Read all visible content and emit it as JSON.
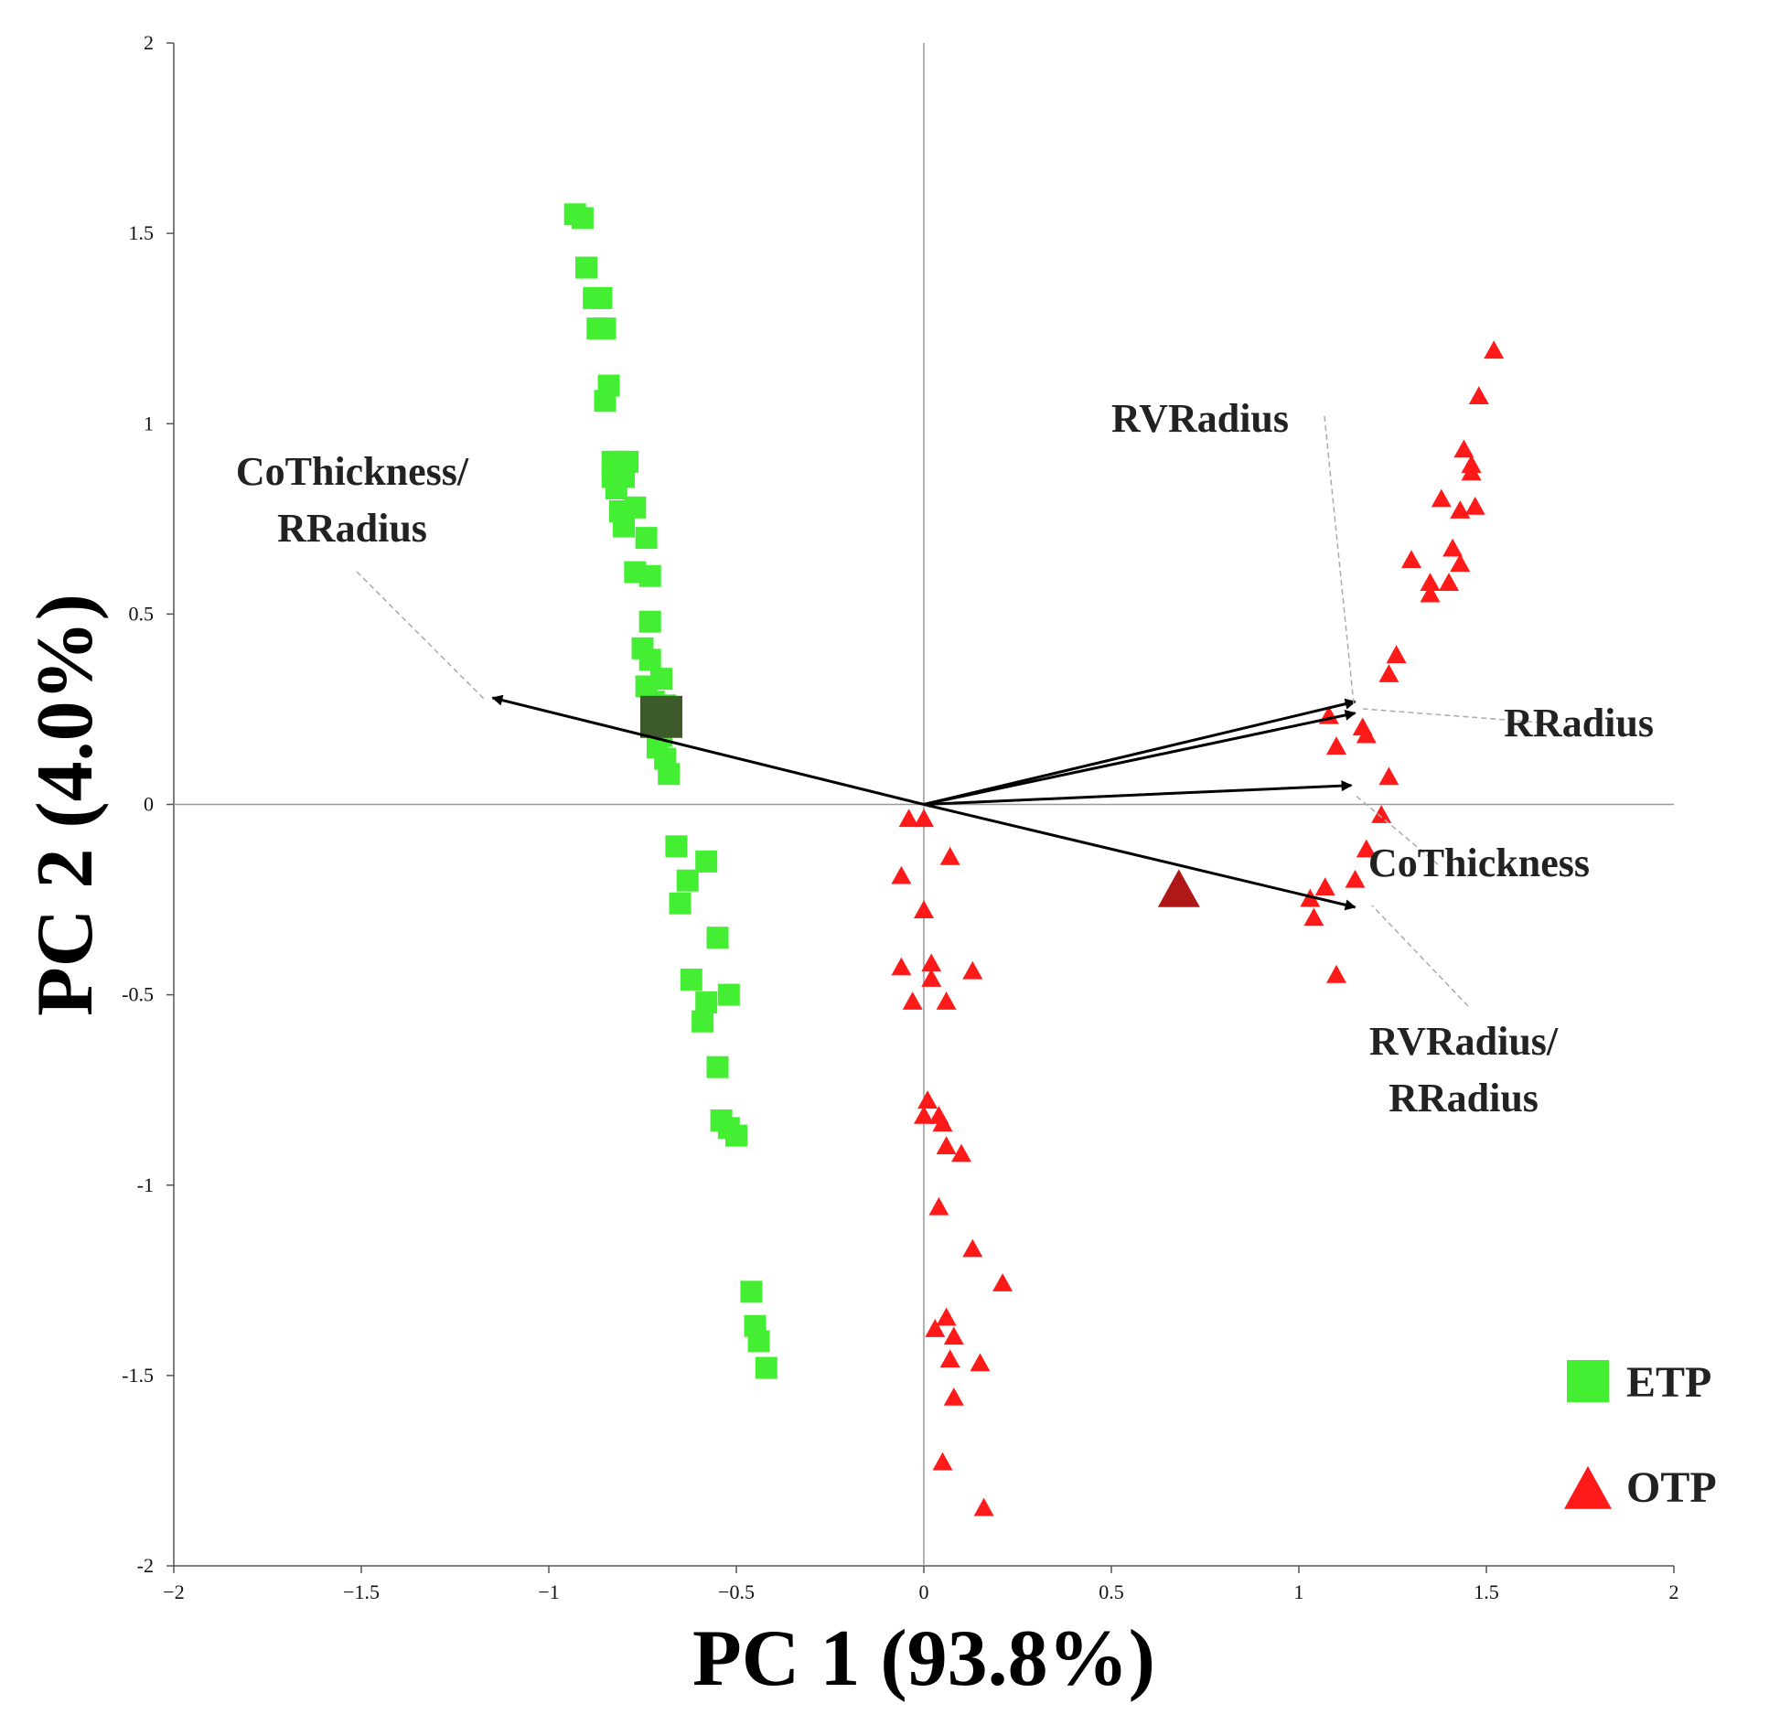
{
  "chart_data": {
    "type": "scatter",
    "title": "",
    "xlabel": "PC 1 (93.8%)",
    "ylabel": "PC 2 (4.0%)",
    "xlim": [
      -2,
      2
    ],
    "ylim": [
      -2,
      2
    ],
    "x_ticks": [
      {
        "value": -2,
        "label": "−2"
      },
      {
        "value": -1.5,
        "label": "−1.5"
      },
      {
        "value": -1,
        "label": "−1"
      },
      {
        "value": -0.5,
        "label": "−0.5"
      },
      {
        "value": 0,
        "label": "0"
      },
      {
        "value": 0.5,
        "label": "0.5"
      },
      {
        "value": 1,
        "label": "1"
      },
      {
        "value": 1.5,
        "label": "1.5"
      },
      {
        "value": 2,
        "label": "2"
      }
    ],
    "y_ticks": [
      {
        "value": 2,
        "label": "2"
      },
      {
        "value": 1.5,
        "label": "1.5"
      },
      {
        "value": 1,
        "label": "1"
      },
      {
        "value": 0.5,
        "label": "0.5"
      },
      {
        "value": 0,
        "label": "0"
      },
      {
        "value": -0.5,
        "label": "-0.5"
      },
      {
        "value": -1,
        "label": "-1"
      },
      {
        "value": -1.5,
        "label": "-1.5"
      },
      {
        "value": -2,
        "label": "-2"
      }
    ],
    "grid": false,
    "legend_position": "bottom-right",
    "series": [
      {
        "name": "ETP",
        "marker": "square",
        "color": "#44ee33",
        "centroid": {
          "x": -0.7,
          "y": 0.23,
          "color": "#3d5a2a"
        },
        "points": [
          {
            "x": -0.93,
            "y": 1.55
          },
          {
            "x": -0.91,
            "y": 1.54
          },
          {
            "x": -0.9,
            "y": 1.41
          },
          {
            "x": -0.88,
            "y": 1.33
          },
          {
            "x": -0.86,
            "y": 1.33
          },
          {
            "x": -0.87,
            "y": 1.25
          },
          {
            "x": -0.85,
            "y": 1.25
          },
          {
            "x": -0.84,
            "y": 1.1
          },
          {
            "x": -0.85,
            "y": 1.06
          },
          {
            "x": -0.83,
            "y": 0.9
          },
          {
            "x": -0.81,
            "y": 0.9
          },
          {
            "x": -0.79,
            "y": 0.9
          },
          {
            "x": -0.83,
            "y": 0.86
          },
          {
            "x": -0.82,
            "y": 0.83
          },
          {
            "x": -0.8,
            "y": 0.86
          },
          {
            "x": -0.81,
            "y": 0.77
          },
          {
            "x": -0.77,
            "y": 0.78
          },
          {
            "x": -0.8,
            "y": 0.73
          },
          {
            "x": -0.74,
            "y": 0.7
          },
          {
            "x": -0.77,
            "y": 0.61
          },
          {
            "x": -0.73,
            "y": 0.6
          },
          {
            "x": -0.73,
            "y": 0.48
          },
          {
            "x": -0.75,
            "y": 0.41
          },
          {
            "x": -0.73,
            "y": 0.38
          },
          {
            "x": -0.7,
            "y": 0.33
          },
          {
            "x": -0.74,
            "y": 0.31
          },
          {
            "x": -0.72,
            "y": 0.27
          },
          {
            "x": -0.69,
            "y": 0.26
          },
          {
            "x": -0.7,
            "y": 0.18
          },
          {
            "x": -0.71,
            "y": 0.15
          },
          {
            "x": -0.69,
            "y": 0.12
          },
          {
            "x": -0.68,
            "y": 0.08
          },
          {
            "x": -0.66,
            "y": -0.11
          },
          {
            "x": -0.58,
            "y": -0.15
          },
          {
            "x": -0.63,
            "y": -0.2
          },
          {
            "x": -0.65,
            "y": -0.26
          },
          {
            "x": -0.55,
            "y": -0.35
          },
          {
            "x": -0.62,
            "y": -0.46
          },
          {
            "x": -0.52,
            "y": -0.5
          },
          {
            "x": -0.58,
            "y": -0.52
          },
          {
            "x": -0.59,
            "y": -0.57
          },
          {
            "x": -0.55,
            "y": -0.69
          },
          {
            "x": -0.54,
            "y": -0.83
          },
          {
            "x": -0.52,
            "y": -0.85
          },
          {
            "x": -0.5,
            "y": -0.87
          },
          {
            "x": -0.46,
            "y": -1.28
          },
          {
            "x": -0.45,
            "y": -1.37
          },
          {
            "x": -0.44,
            "y": -1.41
          },
          {
            "x": -0.42,
            "y": -1.48
          }
        ]
      },
      {
        "name": "OTP",
        "marker": "triangle",
        "color": "#ff1a1a",
        "centroid": {
          "x": 0.68,
          "y": -0.23,
          "color": "#b01818"
        },
        "points": [
          {
            "x": -0.04,
            "y": -0.04
          },
          {
            "x": 0.0,
            "y": -0.04
          },
          {
            "x": 0.07,
            "y": -0.14
          },
          {
            "x": -0.06,
            "y": -0.19
          },
          {
            "x": 0.0,
            "y": -0.28
          },
          {
            "x": 0.02,
            "y": -0.42
          },
          {
            "x": -0.06,
            "y": -0.43
          },
          {
            "x": 0.02,
            "y": -0.46
          },
          {
            "x": 0.13,
            "y": -0.44
          },
          {
            "x": -0.03,
            "y": -0.52
          },
          {
            "x": 0.06,
            "y": -0.52
          },
          {
            "x": 0.01,
            "y": -0.78
          },
          {
            "x": 0.0,
            "y": -0.82
          },
          {
            "x": 0.04,
            "y": -0.82
          },
          {
            "x": 0.05,
            "y": -0.84
          },
          {
            "x": 0.06,
            "y": -0.9
          },
          {
            "x": 0.1,
            "y": -0.92
          },
          {
            "x": 0.04,
            "y": -1.06
          },
          {
            "x": 0.13,
            "y": -1.17
          },
          {
            "x": 0.21,
            "y": -1.26
          },
          {
            "x": 0.06,
            "y": -1.35
          },
          {
            "x": 0.03,
            "y": -1.38
          },
          {
            "x": 0.08,
            "y": -1.4
          },
          {
            "x": 0.07,
            "y": -1.46
          },
          {
            "x": 0.15,
            "y": -1.47
          },
          {
            "x": 0.08,
            "y": -1.56
          },
          {
            "x": 0.05,
            "y": -1.73
          },
          {
            "x": 0.16,
            "y": -1.85
          },
          {
            "x": 1.52,
            "y": 1.19
          },
          {
            "x": 1.48,
            "y": 1.07
          },
          {
            "x": 1.44,
            "y": 0.93
          },
          {
            "x": 1.46,
            "y": 0.89
          },
          {
            "x": 1.46,
            "y": 0.87
          },
          {
            "x": 1.38,
            "y": 0.8
          },
          {
            "x": 1.47,
            "y": 0.78
          },
          {
            "x": 1.43,
            "y": 0.77
          },
          {
            "x": 1.41,
            "y": 0.67
          },
          {
            "x": 1.3,
            "y": 0.64
          },
          {
            "x": 1.43,
            "y": 0.63
          },
          {
            "x": 1.35,
            "y": 0.58
          },
          {
            "x": 1.4,
            "y": 0.58
          },
          {
            "x": 1.35,
            "y": 0.55
          },
          {
            "x": 1.26,
            "y": 0.39
          },
          {
            "x": 1.24,
            "y": 0.34
          },
          {
            "x": 1.08,
            "y": 0.23
          },
          {
            "x": 1.17,
            "y": 0.2
          },
          {
            "x": 1.18,
            "y": 0.18
          },
          {
            "x": 1.1,
            "y": 0.15
          },
          {
            "x": 1.24,
            "y": 0.07
          },
          {
            "x": 1.22,
            "y": -0.03
          },
          {
            "x": 1.18,
            "y": -0.12
          },
          {
            "x": 1.15,
            "y": -0.2
          },
          {
            "x": 1.07,
            "y": -0.22
          },
          {
            "x": 1.03,
            "y": -0.25
          },
          {
            "x": 1.04,
            "y": -0.3
          },
          {
            "x": 1.1,
            "y": -0.45
          }
        ]
      }
    ],
    "loadings": [
      {
        "name": "CoThickness/ RRadius",
        "lines": [
          "CoThickness/",
          "RRadius"
        ],
        "x": -1.15,
        "y": 0.28
      },
      {
        "name": "RVRadius",
        "lines": [
          "RVRadius"
        ],
        "x": 1.15,
        "y": 0.27
      },
      {
        "name": "RRadius",
        "lines": [
          "RRadius"
        ],
        "x": 1.15,
        "y": 0.24
      },
      {
        "name": "CoThickness",
        "lines": [
          "CoThickness"
        ],
        "x": 1.14,
        "y": 0.05
      },
      {
        "name": "RVRadius/ RRadius",
        "lines": [
          "RVRadius/",
          "RRadius"
        ],
        "x": 1.15,
        "y": -0.27
      }
    ],
    "legend": [
      {
        "label": "ETP",
        "marker": "square",
        "color": "#44ee33"
      },
      {
        "label": "OTP",
        "marker": "triangle",
        "color": "#ff1a1a"
      }
    ]
  }
}
